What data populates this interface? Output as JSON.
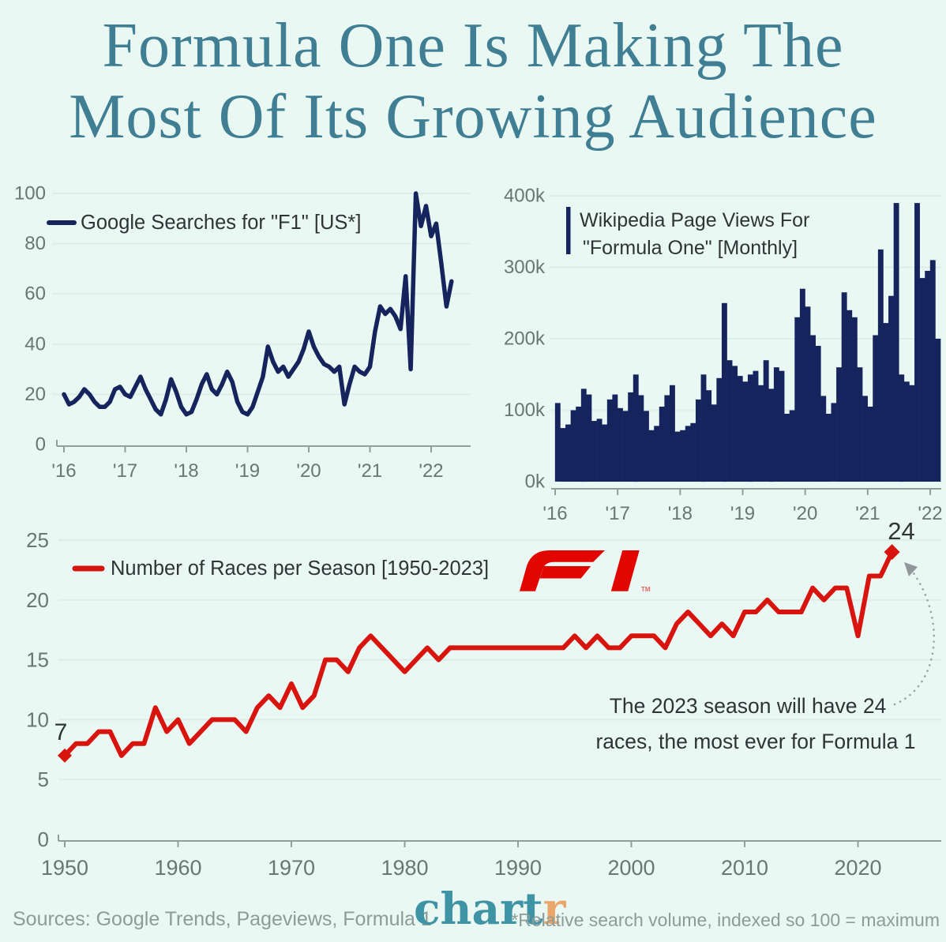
{
  "title": {
    "line1": "Formula One Is Making The",
    "line2": "Most Of Its Growing Audience"
  },
  "colors": {
    "background": "#eaf8f3",
    "title_teal": "#3f7e93",
    "navy": "#15245c",
    "red": "#d8140e",
    "f1_logo_red": "#e10600",
    "grid": "#dceee8",
    "axis_line": "#8fa09c",
    "axis_text": "#697673",
    "text_dark": "#2e3436",
    "arrow_gray": "#9aa3a3",
    "footer_gray": "#8d9b99",
    "chartr_teal": "#3e93a5",
    "chartr_orange": "#eba66c"
  },
  "chart_data": [
    {
      "type": "line",
      "legend": "Google Searches for \"F1\" [US*]",
      "title": "Google Searches for F1 in the US, monthly relative search volume",
      "x_tick_labels": [
        "'16",
        "'17",
        "'18",
        "'19",
        "'20",
        "'21",
        "'22"
      ],
      "y_ticks": [
        0,
        20,
        40,
        60,
        80,
        100
      ],
      "ylim": [
        0,
        100
      ],
      "grid": true,
      "legend_position": "top-left",
      "values": [
        20,
        16,
        17,
        19,
        22,
        20,
        17,
        15,
        15,
        17,
        22,
        23,
        20,
        19,
        23,
        27,
        22,
        18,
        14,
        12,
        18,
        26,
        21,
        15,
        12,
        13,
        18,
        24,
        28,
        22,
        20,
        24,
        29,
        25,
        17,
        13,
        12,
        15,
        21,
        27,
        39,
        33,
        29,
        31,
        27,
        30,
        33,
        38,
        45,
        39,
        35,
        32,
        31,
        29,
        31,
        16,
        24,
        31,
        29,
        28,
        31,
        45,
        55,
        52,
        54,
        51,
        46,
        67,
        30,
        100,
        87,
        95,
        83,
        88,
        72,
        55,
        65
      ]
    },
    {
      "type": "bar",
      "legend_line1": "Wikipedia Page Views For",
      "legend_line2": "\"Formula One\" [Monthly]",
      "title": "Wikipedia monthly page views for Formula One",
      "x_tick_labels": [
        "'16",
        "'17",
        "'18",
        "'19",
        "'20",
        "'21",
        "'22"
      ],
      "y_tick_values": [
        0,
        100,
        200,
        300,
        400
      ],
      "y_tick_labels": [
        "0k",
        "100k",
        "200k",
        "300k",
        "400k"
      ],
      "ylim": [
        0,
        400
      ],
      "unit": "thousands of views",
      "grid": true,
      "legend_position": "top-left",
      "values": [
        110,
        75,
        80,
        100,
        105,
        130,
        122,
        85,
        88,
        80,
        115,
        122,
        103,
        99,
        125,
        150,
        121,
        99,
        72,
        78,
        105,
        121,
        135,
        70,
        72,
        78,
        82,
        115,
        150,
        128,
        108,
        145,
        250,
        170,
        162,
        148,
        140,
        150,
        155,
        135,
        170,
        130,
        160,
        155,
        95,
        100,
        230,
        270,
        245,
        205,
        190,
        120,
        95,
        110,
        160,
        265,
        240,
        230,
        160,
        120,
        105,
        205,
        325,
        222,
        260,
        390,
        150,
        140,
        135,
        390,
        285,
        295,
        310,
        200
      ]
    },
    {
      "type": "line",
      "legend": "Number of Races per Season [1950-2023]",
      "title": "Number of Formula 1 races per season, 1950-2023",
      "start_year": 1950,
      "end_year": 2023,
      "x_tick_labels": [
        "1950",
        "1960",
        "1970",
        "1980",
        "1990",
        "2000",
        "2010",
        "2020"
      ],
      "y_ticks": [
        0,
        5,
        10,
        15,
        20,
        25
      ],
      "ylim": [
        0,
        25
      ],
      "grid": true,
      "first_point_label": "7",
      "last_point_label": "24",
      "annotation_line1": "The 2023 season will have 24",
      "annotation_line2": "races, the most ever for Formula 1",
      "values": [
        7,
        8,
        8,
        9,
        9,
        7,
        8,
        8,
        11,
        9,
        10,
        8,
        9,
        10,
        10,
        10,
        9,
        11,
        12,
        11,
        13,
        11,
        12,
        15,
        15,
        14,
        16,
        17,
        16,
        15,
        14,
        15,
        16,
        15,
        16,
        16,
        16,
        16,
        16,
        16,
        16,
        16,
        16,
        16,
        16,
        17,
        16,
        17,
        16,
        16,
        17,
        17,
        17,
        16,
        18,
        19,
        18,
        17,
        18,
        17,
        19,
        19,
        20,
        19,
        19,
        19,
        21,
        20,
        21,
        21,
        17,
        22,
        22,
        24
      ]
    }
  ],
  "f1_logo": {
    "name": "f1-logo",
    "trademark": "TM"
  },
  "footer": {
    "sources": "Sources: Google Trends, Pageviews, Formula 1",
    "brand_chart": "chart",
    "brand_r": "r",
    "footnote": "*Relative search volume, indexed so 100 = maximum"
  }
}
